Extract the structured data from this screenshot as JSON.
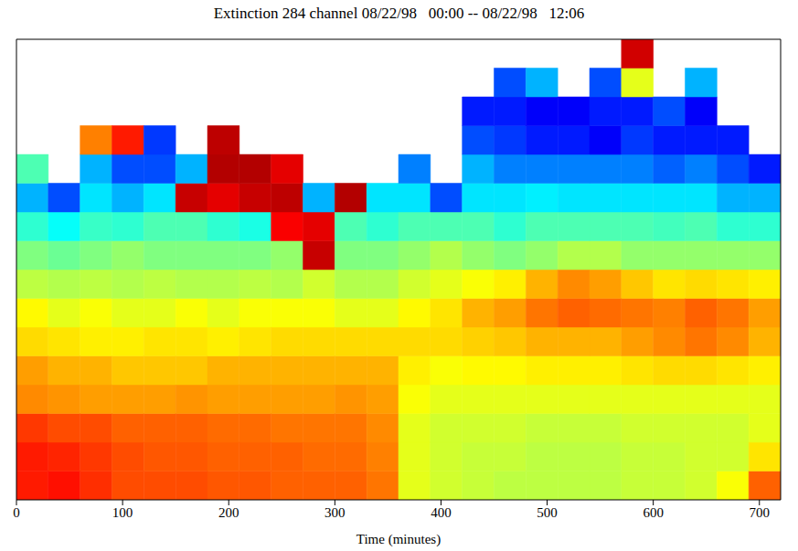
{
  "chart_data": {
    "type": "heatmap",
    "title": "Extinction 284 channel 08/22/98   00:00 -- 08/22/98   12:06",
    "x_label": "Time (minutes)",
    "xlim": [
      0,
      720
    ],
    "xticks": [
      0,
      100,
      200,
      300,
      400,
      500,
      600,
      700
    ],
    "ylim": [
      0,
      16
    ],
    "tick_labels": "x",
    "grid": false,
    "x_bins": [
      0,
      30,
      60,
      90,
      120,
      150,
      180,
      210,
      240,
      270,
      300,
      330,
      360,
      390,
      420,
      450,
      480,
      510,
      540,
      570,
      600,
      630,
      660,
      690,
      720
    ],
    "y_bins": [
      0,
      1,
      2,
      3,
      4,
      5,
      6,
      7,
      8,
      9,
      10,
      11,
      12,
      13,
      14,
      15,
      16
    ],
    "color_range": [
      0,
      1
    ],
    "cells": [
      [
        0.85,
        0.85,
        0.82,
        0.74,
        0.72,
        0.66,
        0.63,
        0.56,
        0.5,
        0.42,
        0.3,
        0.45,
        null,
        null,
        null,
        null
      ],
      [
        0.86,
        0.84,
        0.8,
        0.73,
        0.7,
        0.65,
        0.6,
        0.55,
        0.48,
        0.38,
        0.2,
        null,
        null,
        null,
        null,
        null
      ],
      [
        0.83,
        0.82,
        0.8,
        0.72,
        0.7,
        0.64,
        0.62,
        0.56,
        0.5,
        0.43,
        0.35,
        0.3,
        0.75,
        null,
        null,
        null
      ],
      [
        0.8,
        0.8,
        0.78,
        0.72,
        0.68,
        0.64,
        0.6,
        0.55,
        0.52,
        0.42,
        0.3,
        0.2,
        0.85,
        null,
        null,
        null
      ],
      [
        0.8,
        0.79,
        0.78,
        0.72,
        0.68,
        0.65,
        0.6,
        0.56,
        0.5,
        0.45,
        0.35,
        0.2,
        0.18,
        null,
        null,
        null
      ],
      [
        0.8,
        0.79,
        0.78,
        0.73,
        0.68,
        0.65,
        0.62,
        0.55,
        0.5,
        0.45,
        0.93,
        0.3,
        null,
        null,
        null,
        null
      ],
      [
        0.79,
        0.78,
        0.77,
        0.72,
        0.7,
        0.64,
        0.6,
        0.55,
        0.5,
        0.42,
        0.9,
        0.95,
        0.94,
        null,
        null,
        null
      ],
      [
        0.79,
        0.78,
        0.77,
        0.72,
        0.7,
        0.65,
        0.62,
        0.56,
        0.5,
        0.4,
        0.93,
        0.95,
        null,
        null,
        null,
        null
      ],
      [
        0.78,
        0.78,
        0.76,
        0.72,
        0.7,
        0.66,
        0.62,
        0.55,
        0.52,
        0.88,
        0.94,
        0.9,
        null,
        null,
        null,
        null
      ],
      [
        0.78,
        0.77,
        0.76,
        0.72,
        0.7,
        0.66,
        0.62,
        0.58,
        0.93,
        0.9,
        0.3,
        null,
        null,
        null,
        null,
        null
      ],
      [
        0.78,
        0.77,
        0.76,
        0.73,
        0.7,
        0.66,
        0.6,
        0.55,
        0.5,
        0.45,
        0.95,
        null,
        null,
        null,
        null,
        null
      ],
      [
        0.76,
        0.75,
        0.74,
        0.72,
        0.7,
        0.66,
        0.6,
        0.55,
        0.5,
        0.42,
        0.35,
        null,
        null,
        null,
        null,
        null
      ],
      [
        0.6,
        0.6,
        0.6,
        0.62,
        0.64,
        0.66,
        0.63,
        0.58,
        0.52,
        0.45,
        0.35,
        0.25,
        null,
        null,
        null,
        null
      ],
      [
        0.58,
        0.58,
        0.58,
        0.6,
        0.62,
        0.66,
        0.65,
        0.6,
        0.55,
        0.45,
        0.2,
        null,
        null,
        null,
        null,
        null
      ],
      [
        0.57,
        0.57,
        0.58,
        0.6,
        0.63,
        0.67,
        0.7,
        0.62,
        0.52,
        0.45,
        0.35,
        0.3,
        0.2,
        0.15,
        null,
        null
      ],
      [
        0.56,
        0.57,
        0.58,
        0.6,
        0.63,
        0.68,
        0.72,
        0.64,
        0.5,
        0.42,
        0.35,
        0.25,
        0.18,
        0.15,
        0.2,
        null
      ],
      [
        0.56,
        0.56,
        0.57,
        0.6,
        0.64,
        0.7,
        0.76,
        0.7,
        0.52,
        0.45,
        0.36,
        0.25,
        0.15,
        0.12,
        0.3,
        null
      ],
      [
        0.56,
        0.56,
        0.57,
        0.6,
        0.64,
        0.7,
        0.78,
        0.74,
        0.55,
        0.45,
        0.35,
        0.25,
        0.15,
        0.12,
        null,
        null
      ],
      [
        0.56,
        0.56,
        0.57,
        0.6,
        0.64,
        0.7,
        0.77,
        0.72,
        0.55,
        0.45,
        0.35,
        0.25,
        0.12,
        0.15,
        0.2,
        null
      ],
      [
        0.57,
        0.57,
        0.58,
        0.6,
        0.65,
        0.72,
        0.76,
        0.68,
        0.52,
        0.45,
        0.35,
        0.25,
        0.18,
        0.15,
        0.6,
        0.92
      ],
      [
        0.57,
        0.57,
        0.58,
        0.6,
        0.66,
        0.74,
        0.75,
        0.65,
        0.52,
        0.44,
        0.35,
        0.22,
        0.15,
        0.2,
        null,
        null
      ],
      [
        0.58,
        0.58,
        0.58,
        0.6,
        0.66,
        0.76,
        0.78,
        0.66,
        0.52,
        0.45,
        0.35,
        0.25,
        0.15,
        0.12,
        0.3,
        null
      ],
      [
        0.62,
        0.58,
        0.58,
        0.6,
        0.65,
        0.74,
        0.76,
        0.65,
        0.52,
        0.42,
        0.3,
        0.2,
        0.15,
        null,
        null,
        null
      ],
      [
        0.78,
        0.65,
        0.6,
        0.6,
        0.64,
        0.7,
        0.72,
        0.64,
        0.52,
        0.42,
        0.3,
        0.15,
        null,
        null,
        null,
        null
      ]
    ]
  }
}
